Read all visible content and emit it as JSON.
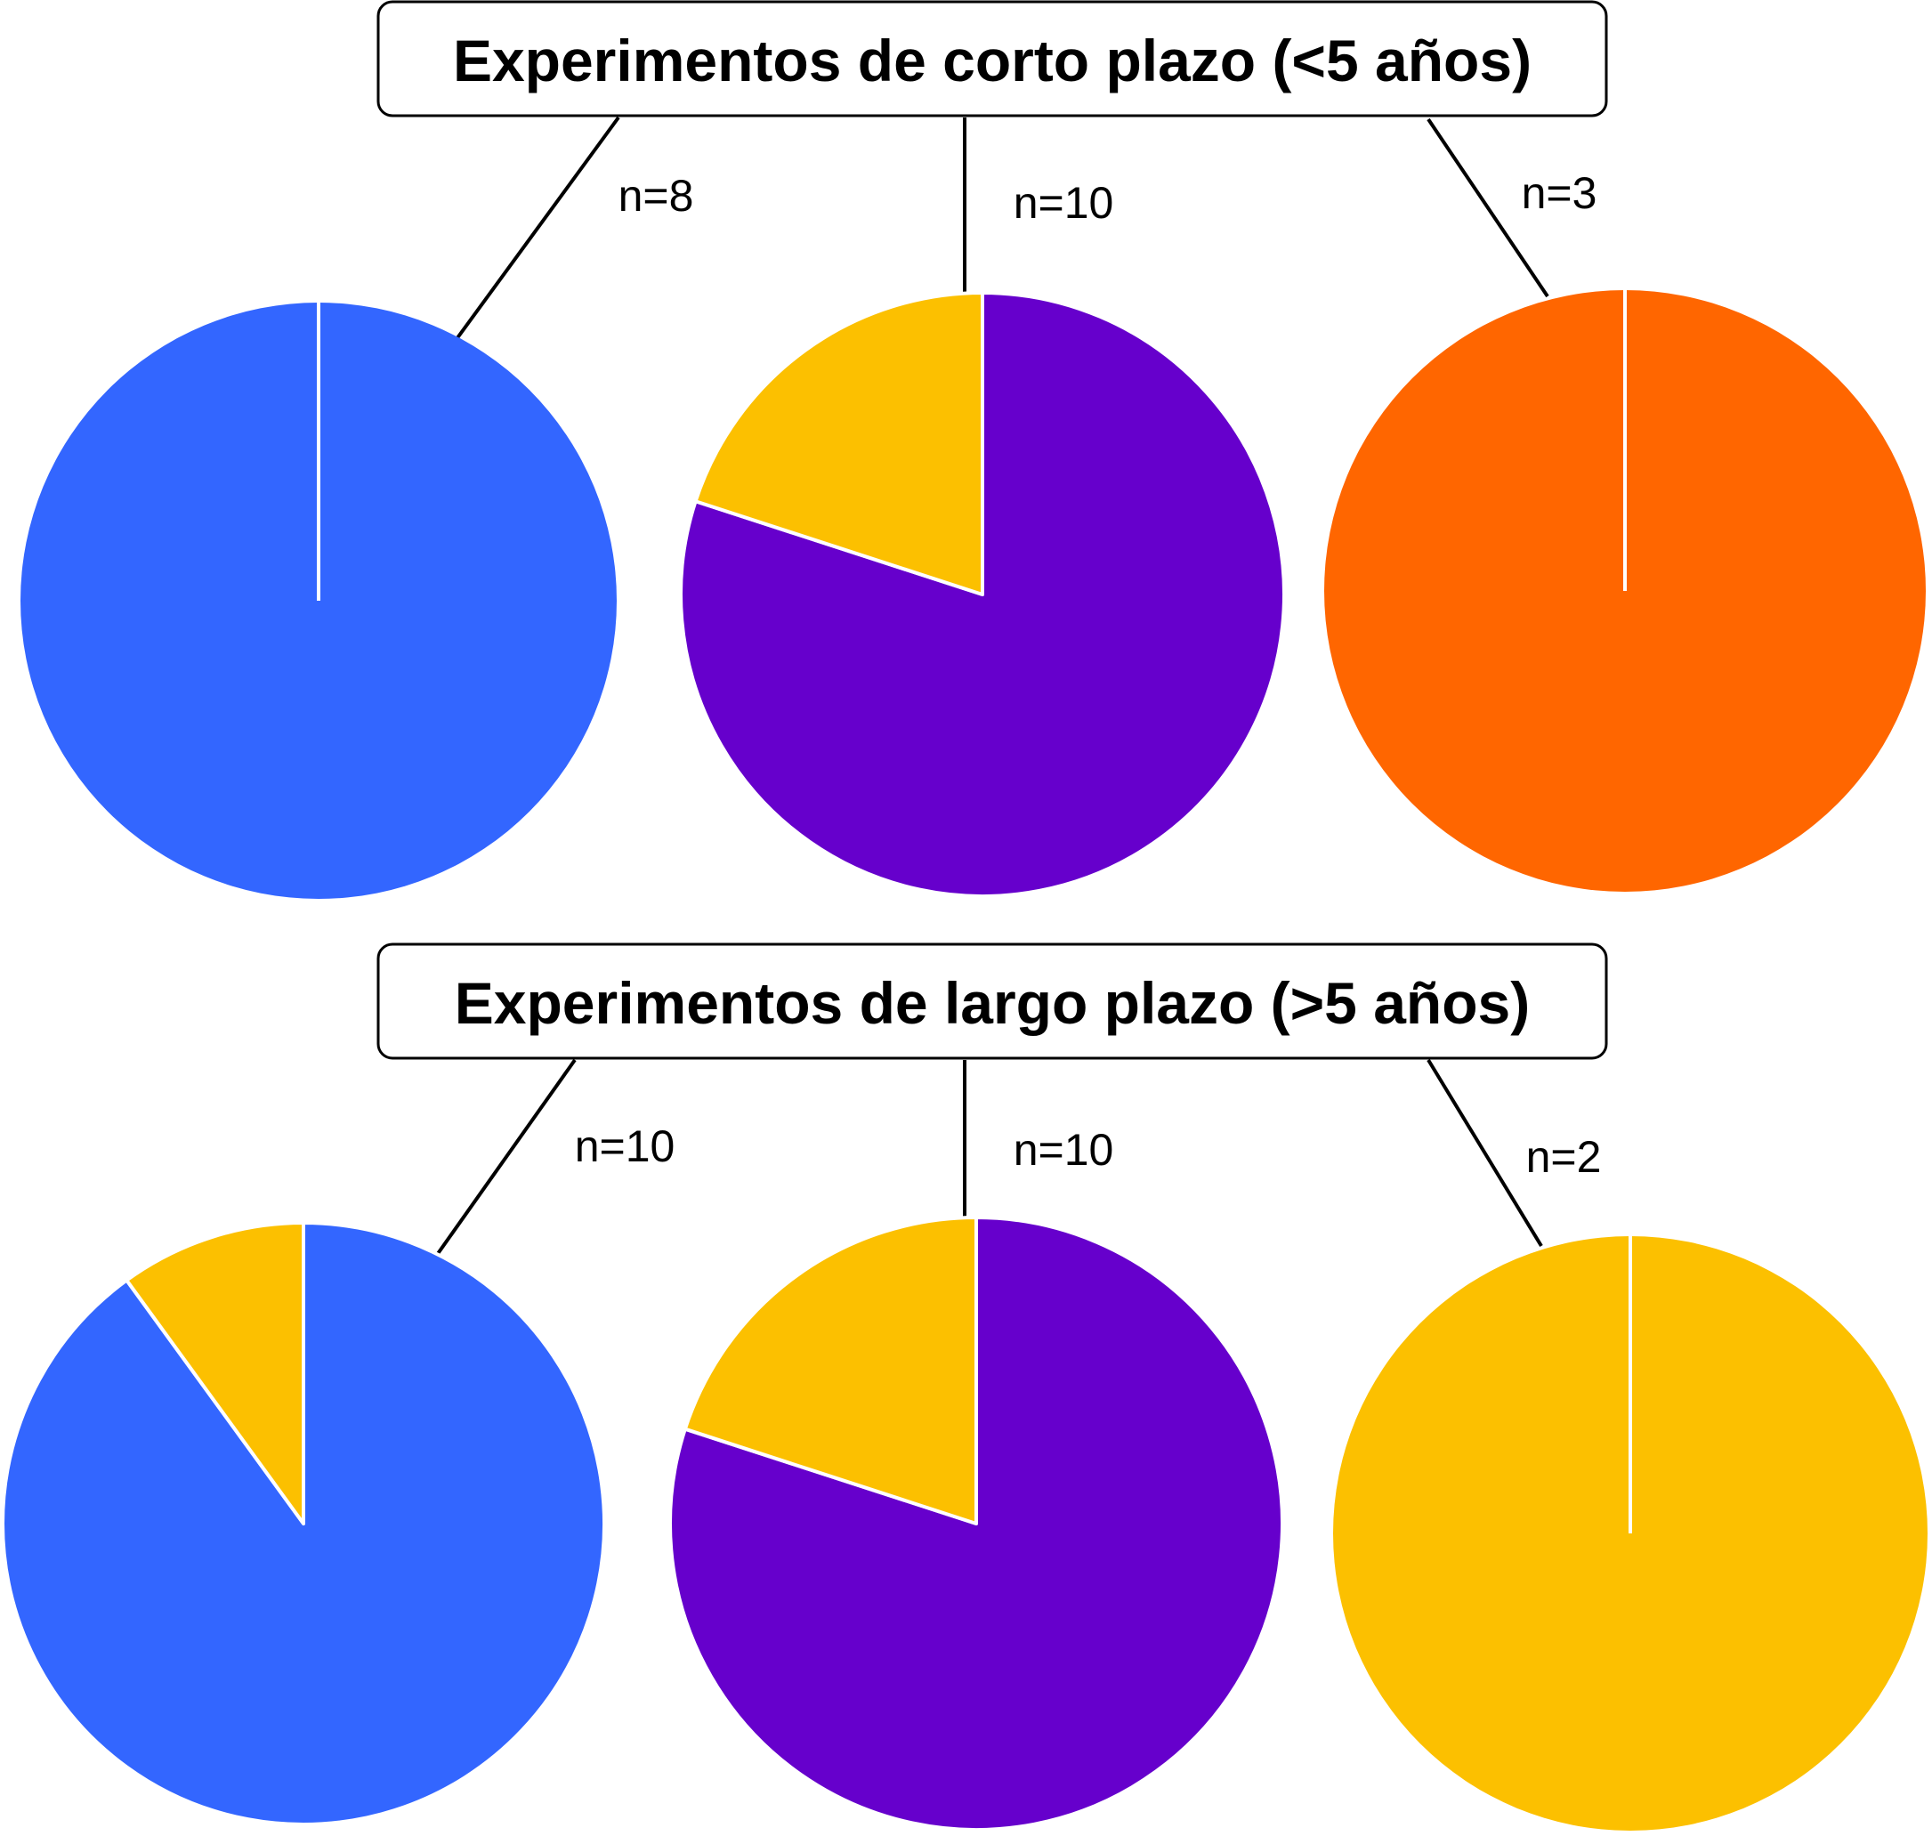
{
  "chart_data": [
    {
      "type": "pie",
      "group": "Experimentos de corto plazo (<5 años)",
      "n_label": "n=8",
      "slices": [
        {
          "value": 1.0,
          "color": "#3366ff"
        }
      ]
    },
    {
      "type": "pie",
      "group": "Experimentos de corto plazo (<5 años)",
      "n_label": "n=10",
      "slices": [
        {
          "value": 0.8,
          "color": "#6600cc"
        },
        {
          "value": 0.2,
          "color": "#fcc000"
        }
      ]
    },
    {
      "type": "pie",
      "group": "Experimentos de corto plazo (<5 años)",
      "n_label": "n=3",
      "slices": [
        {
          "value": 1.0,
          "color": "#ff6600"
        }
      ]
    },
    {
      "type": "pie",
      "group": "Experimentos de largo plazo (>5 años)",
      "n_label": "n=10",
      "slices": [
        {
          "value": 0.9,
          "color": "#3366ff"
        },
        {
          "value": 0.1,
          "color": "#fcc000"
        }
      ]
    },
    {
      "type": "pie",
      "group": "Experimentos de largo plazo (>5 años)",
      "n_label": "n=10",
      "slices": [
        {
          "value": 0.8,
          "color": "#6600cc"
        },
        {
          "value": 0.2,
          "color": "#fcc000"
        }
      ]
    },
    {
      "type": "pie",
      "group": "Experimentos de largo plazo (>5 años)",
      "n_label": "n=2",
      "slices": [
        {
          "value": 1.0,
          "color": "#fcc000"
        }
      ]
    }
  ],
  "groups": {
    "short": {
      "title": "Experimentos de corto plazo (<5 años)"
    },
    "long": {
      "title": "Experimentos de largo plazo (>5 años)"
    }
  },
  "colors": {
    "blue": "#3366ff",
    "purple": "#6600cc",
    "orange": "#ff6600",
    "yellow": "#fcc000",
    "slice_border": "#ffffff"
  }
}
